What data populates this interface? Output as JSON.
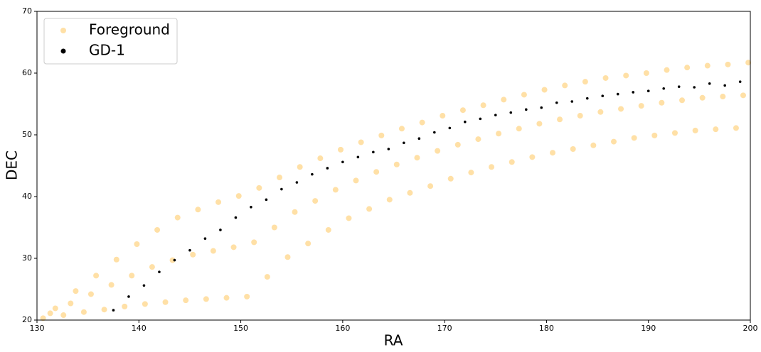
{
  "chart_data": {
    "type": "scatter",
    "xlabel": "RA",
    "ylabel": "DEC",
    "xlim": [
      130,
      200
    ],
    "ylim": [
      20,
      70
    ],
    "xticks": [
      130,
      140,
      150,
      160,
      170,
      180,
      190,
      200
    ],
    "yticks": [
      20,
      30,
      40,
      50,
      60,
      70
    ],
    "legend": "upper left",
    "series": [
      {
        "name": "Foreground",
        "color": "#ffa500",
        "x": [
          130.6,
          131.3,
          131.8,
          132.6,
          133.3,
          133.8,
          134.6,
          135.3,
          135.8,
          136.6,
          137.3,
          137.8,
          138.6,
          139.3,
          139.8,
          140.6,
          141.3,
          141.8,
          142.6,
          143.3,
          143.8,
          144.6,
          145.3,
          145.8,
          146.6,
          147.3,
          147.8,
          148.6,
          149.3,
          149.8,
          150.6,
          151.3,
          151.8,
          152.6,
          153.3,
          153.8,
          154.6,
          155.3,
          155.8,
          156.6,
          157.3,
          157.8,
          158.6,
          159.3,
          159.8,
          160.6,
          161.3,
          161.8,
          162.6,
          163.3,
          163.8,
          164.6,
          165.3,
          165.8,
          166.6,
          167.3,
          167.8,
          168.6,
          169.3,
          169.8,
          170.6,
          171.3,
          171.8,
          172.6,
          173.3,
          173.8,
          174.6,
          175.3,
          175.8,
          176.6,
          177.3,
          177.8,
          178.6,
          179.3,
          179.8,
          180.6,
          181.3,
          181.8,
          182.6,
          183.3,
          183.8,
          184.6,
          185.3,
          185.8,
          186.6,
          187.3,
          187.8,
          188.6,
          189.3,
          189.8,
          190.6,
          191.3,
          191.8,
          192.6,
          193.3,
          193.8,
          194.6,
          195.3,
          195.8,
          196.6,
          197.3,
          197.8,
          198.6,
          199.3,
          199.8
        ],
        "values": [
          20.3,
          21.1,
          21.9,
          20.8,
          22.7,
          24.7,
          21.3,
          24.2,
          27.2,
          21.7,
          25.7,
          29.8,
          22.2,
          27.2,
          32.3,
          22.6,
          28.6,
          34.6,
          22.9,
          29.7,
          36.6,
          23.2,
          30.6,
          37.9,
          23.4,
          31.2,
          39.1,
          23.6,
          31.8,
          40.1,
          23.8,
          32.6,
          41.4,
          27,
          35,
          43.1,
          30.2,
          37.5,
          44.8,
          32.4,
          39.3,
          46.2,
          34.6,
          41.1,
          47.6,
          36.5,
          42.6,
          48.8,
          38,
          44,
          49.9,
          39.5,
          45.2,
          51,
          40.6,
          46.3,
          52,
          41.7,
          47.4,
          53.1,
          42.9,
          48.4,
          54,
          43.9,
          49.3,
          54.8,
          44.8,
          50.2,
          55.7,
          45.6,
          51,
          56.5,
          46.4,
          51.8,
          57.3,
          47.1,
          52.5,
          58,
          47.7,
          53.1,
          58.6,
          48.3,
          53.7,
          59.2,
          48.9,
          54.2,
          59.6,
          49.5,
          54.7,
          60,
          49.9,
          55.2,
          60.5,
          50.3,
          55.6,
          60.9,
          50.7,
          56,
          61.2,
          50.9,
          56.2,
          61.4,
          51.1,
          56.4,
          61.7
        ]
      },
      {
        "name": "GD-1",
        "color": "#000000",
        "x": [
          137.5,
          139,
          140.5,
          142,
          143.5,
          145,
          146.5,
          148,
          149.5,
          151,
          152.5,
          154,
          155.5,
          157,
          158.5,
          160,
          161.5,
          163,
          164.5,
          166,
          167.5,
          169,
          170.5,
          172,
          173.5,
          175,
          176.5,
          178,
          179.5,
          181,
          182.5,
          184,
          185.5,
          187,
          188.5,
          190,
          191.5,
          193,
          194.5,
          196,
          197.5,
          199
        ],
        "values": [
          21.6,
          23.8,
          25.6,
          27.8,
          29.7,
          31.3,
          33.2,
          34.6,
          36.6,
          38.3,
          39.5,
          41.2,
          42.3,
          43.6,
          44.6,
          45.6,
          46.4,
          47.2,
          47.7,
          48.7,
          49.4,
          50.4,
          51.1,
          52.1,
          52.6,
          53.2,
          53.6,
          54.1,
          54.4,
          55.2,
          55.4,
          55.9,
          56.3,
          56.6,
          56.9,
          57.1,
          57.5,
          57.8,
          57.7,
          58.3,
          58,
          58.6
        ]
      }
    ]
  }
}
